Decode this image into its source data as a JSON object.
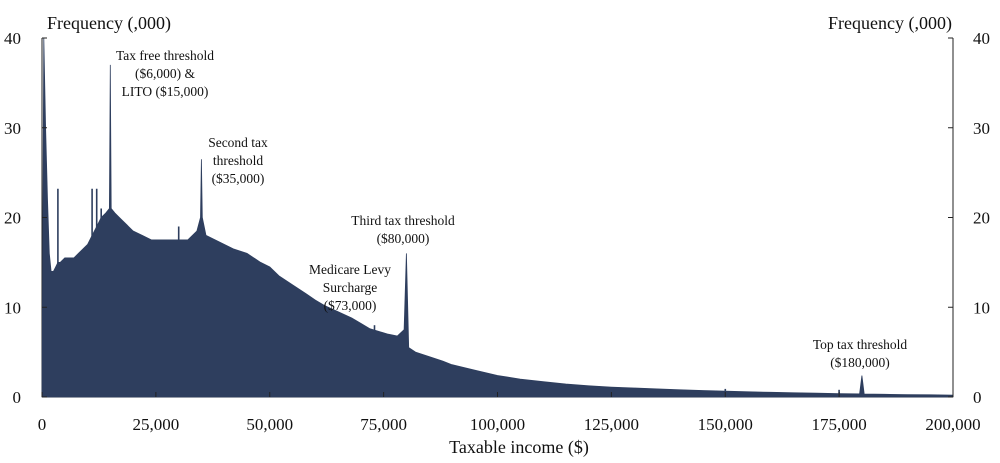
{
  "chart_data": {
    "type": "area",
    "xlabel": "Taxable income ($)",
    "ylabel_left": "Frequency (,000)",
    "ylabel_right": "Frequency (,000)",
    "xlim": [
      0,
      200000
    ],
    "ylim": [
      0,
      40
    ],
    "x_ticks": [
      0,
      25000,
      50000,
      75000,
      100000,
      125000,
      150000,
      175000,
      200000
    ],
    "x_tick_labels": [
      "0",
      "25,000",
      "50,000",
      "75,000",
      "100,000",
      "125,000",
      "150,000",
      "175,000",
      "200,000"
    ],
    "y_ticks": [
      0,
      10,
      20,
      30,
      40
    ],
    "y_tick_labels": [
      "0",
      "10",
      "20",
      "30",
      "40"
    ],
    "grid": false,
    "legend": "none",
    "series_color": "#2e3e5e",
    "x": [
      0,
      400,
      800,
      1200,
      1600,
      2000,
      2500,
      3000,
      3500,
      4000,
      5000,
      6000,
      7000,
      8000,
      9000,
      10000,
      11000,
      12000,
      13000,
      14000,
      14800,
      15000,
      15200,
      16000,
      17000,
      18000,
      19000,
      20000,
      22000,
      24000,
      26000,
      28000,
      30000,
      32000,
      34000,
      34800,
      35000,
      35200,
      36000,
      38000,
      40000,
      42000,
      45000,
      48000,
      50000,
      52000,
      55000,
      58000,
      60000,
      62000,
      65000,
      68000,
      70000,
      72000,
      74000,
      76000,
      78000,
      79500,
      80000,
      80500,
      82000,
      85000,
      88000,
      90000,
      95000,
      100000,
      105000,
      110000,
      115000,
      120000,
      125000,
      130000,
      135000,
      140000,
      145000,
      150000,
      155000,
      160000,
      165000,
      170000,
      175000,
      179500,
      180000,
      180500,
      185000,
      190000,
      195000,
      200000
    ],
    "values": [
      0,
      40,
      30,
      22,
      16,
      14,
      14,
      14.5,
      15,
      15,
      15.5,
      15.5,
      15.5,
      16,
      16.5,
      17,
      18,
      19,
      20,
      20.5,
      21,
      37,
      21,
      20.5,
      20,
      19.5,
      19,
      18.5,
      18,
      17.5,
      17.5,
      17.5,
      17.5,
      17.5,
      18.5,
      20,
      26.5,
      20,
      18,
      17.5,
      17,
      16.5,
      16,
      15,
      14.5,
      13.5,
      12.5,
      11.5,
      10.8,
      10.2,
      9.5,
      8.8,
      8.2,
      7.6,
      7.3,
      7.0,
      6.8,
      7.5,
      16,
      5.5,
      5.0,
      4.5,
      4.0,
      3.6,
      3.0,
      2.4,
      2.0,
      1.7,
      1.45,
      1.25,
      1.1,
      1.0,
      0.9,
      0.8,
      0.72,
      0.65,
      0.58,
      0.52,
      0.47,
      0.42,
      0.38,
      0.35,
      2.4,
      0.33,
      0.3,
      0.27,
      0.25,
      0.2
    ],
    "spikes": [
      {
        "x": 3500,
        "y": 23.2
      },
      {
        "x": 11000,
        "y": 23.2
      },
      {
        "x": 12000,
        "y": 23.2
      },
      {
        "x": 13000,
        "y": 21.0
      },
      {
        "x": 30000,
        "y": 19.0
      },
      {
        "x": 73000,
        "y": 8.0
      },
      {
        "x": 150000,
        "y": 0.9
      },
      {
        "x": 175000,
        "y": 0.8
      }
    ],
    "annotations": [
      {
        "lines": [
          "Tax free threshold",
          "($6,000) &",
          "LITO ($15,000)"
        ],
        "x": 15000
      },
      {
        "lines": [
          "Second tax",
          "threshold",
          "($35,000)"
        ],
        "x": 35000
      },
      {
        "lines": [
          "Third tax threshold",
          "($80,000)"
        ],
        "x": 80000
      },
      {
        "lines": [
          "Medicare Levy",
          "Surcharge",
          "($73,000)"
        ],
        "x": 73000
      },
      {
        "lines": [
          "Top tax threshold",
          "($180,000)"
        ],
        "x": 180000
      }
    ]
  }
}
